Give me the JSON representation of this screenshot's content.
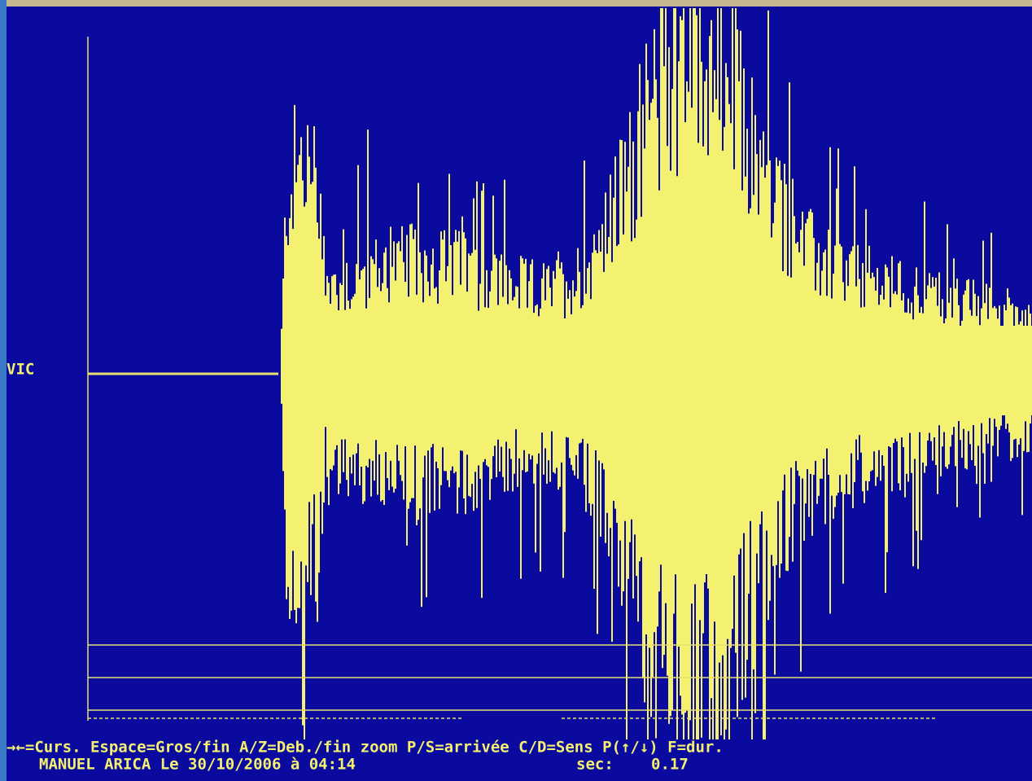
{
  "station": "VIC",
  "help_line": "→←=Curs. Espace=Gros/fin A/Z=Deb./fin zoom P/S=arrivée C/D=Sens P(↑/↓) F=dur.",
  "footer": {
    "event": "MANUEL ARICA Le 30/10/2006 à 04:14",
    "sec_label": "sec:",
    "sec_value": "0.17"
  }
}
